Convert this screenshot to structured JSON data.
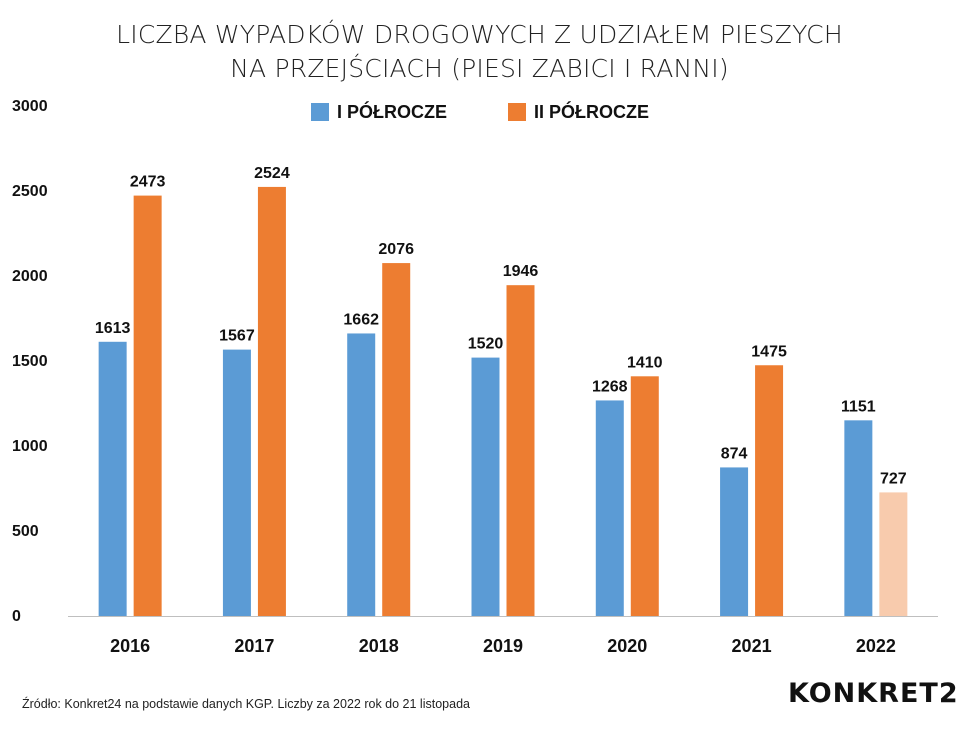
{
  "title": {
    "line1": "LICZBA WYPADKÓW DROGOWYCH Z UDZIAŁEM PIESZYCH",
    "line2": "NA PRZEJŚCIACH (PIESI ZABICI I RANNI)"
  },
  "legend": [
    {
      "label": "I PÓŁROCZE",
      "color": "#5b9bd5"
    },
    {
      "label": "II PÓŁROCZE",
      "color": "#ed7d31"
    }
  ],
  "source": "Źródło: Konkret24 na podstawie danych KGP. Liczby za 2022 rok do 21 listopada",
  "logo": "KONKRET24",
  "chart_data": {
    "type": "bar",
    "categories": [
      "2016",
      "2017",
      "2018",
      "2019",
      "2020",
      "2021",
      "2022"
    ],
    "series": [
      {
        "name": "I PÓŁROCZE",
        "values": [
          1613,
          1567,
          1662,
          1520,
          1268,
          874,
          1151
        ],
        "color": "#5b9bd5"
      },
      {
        "name": "II PÓŁROCZE",
        "values": [
          2473,
          2524,
          2076,
          1946,
          1410,
          1475,
          727
        ],
        "color": "#ed7d31",
        "partial_last_color": "#f8cbad"
      }
    ],
    "yticks": [
      "0",
      "500",
      "1000",
      "1500",
      "2000",
      "2500",
      "3000"
    ],
    "ylim": [
      0,
      3000
    ],
    "grid": false,
    "legend_position": "top-center"
  }
}
